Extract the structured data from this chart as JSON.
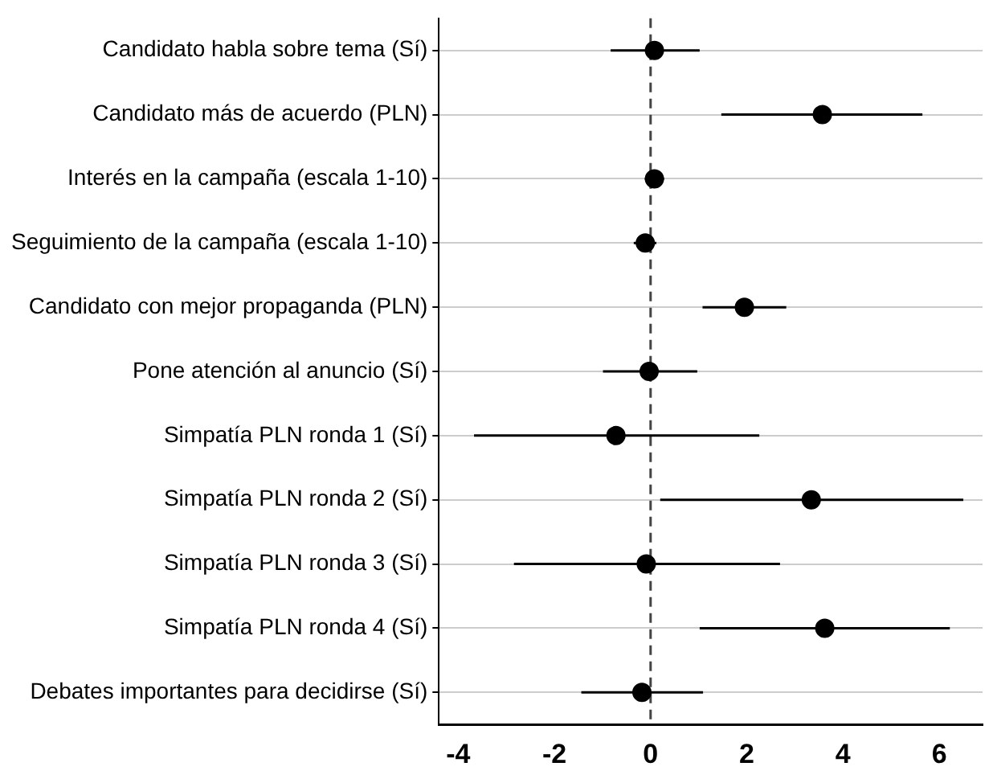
{
  "chart_data": {
    "type": "scatter",
    "orientation": "horizontal",
    "categories": [
      "Candidato habla sobre tema (Sí)",
      "Candidato más de acuerdo (PLN)",
      "Interés en la campaña (escala 1-10)",
      "Seguimiento de la campaña (escala 1-10)",
      "Candidato con mejor propaganda (PLN)",
      "Pone atención al anuncio (Sí)",
      "Simpatía PLN ronda 1 (Sí)",
      "Simpatía PLN ronda 2 (Sí)",
      "Simpatía PLN ronda 3 (Sí)",
      "Simpatía PLN ronda 4 (Sí)",
      "Debates importantes para decidirse (Sí)"
    ],
    "values": [
      0.08,
      3.57,
      0.08,
      -0.11,
      1.95,
      -0.03,
      -0.72,
      3.34,
      -0.09,
      3.62,
      -0.18
    ],
    "errors": [
      [
        -0.83,
        1.02
      ],
      [
        1.47,
        5.65
      ],
      [
        -0.12,
        0.28
      ],
      [
        -0.35,
        0.12
      ],
      [
        1.08,
        2.82
      ],
      [
        -0.99,
        0.97
      ],
      [
        -3.67,
        2.26
      ],
      [
        0.2,
        6.5
      ],
      [
        -2.84,
        2.69
      ],
      [
        1.02,
        6.22
      ],
      [
        -1.44,
        1.09
      ]
    ],
    "color": "#000000",
    "marker": "circle",
    "xlim": [
      -4.4,
      6.9
    ],
    "xticks": [
      -4,
      -2,
      0,
      2,
      4,
      6
    ],
    "ref_lines": [
      {
        "axis": "x",
        "value": 0,
        "line_style": "dashed",
        "color": "#444444"
      }
    ],
    "grid": "y"
  }
}
